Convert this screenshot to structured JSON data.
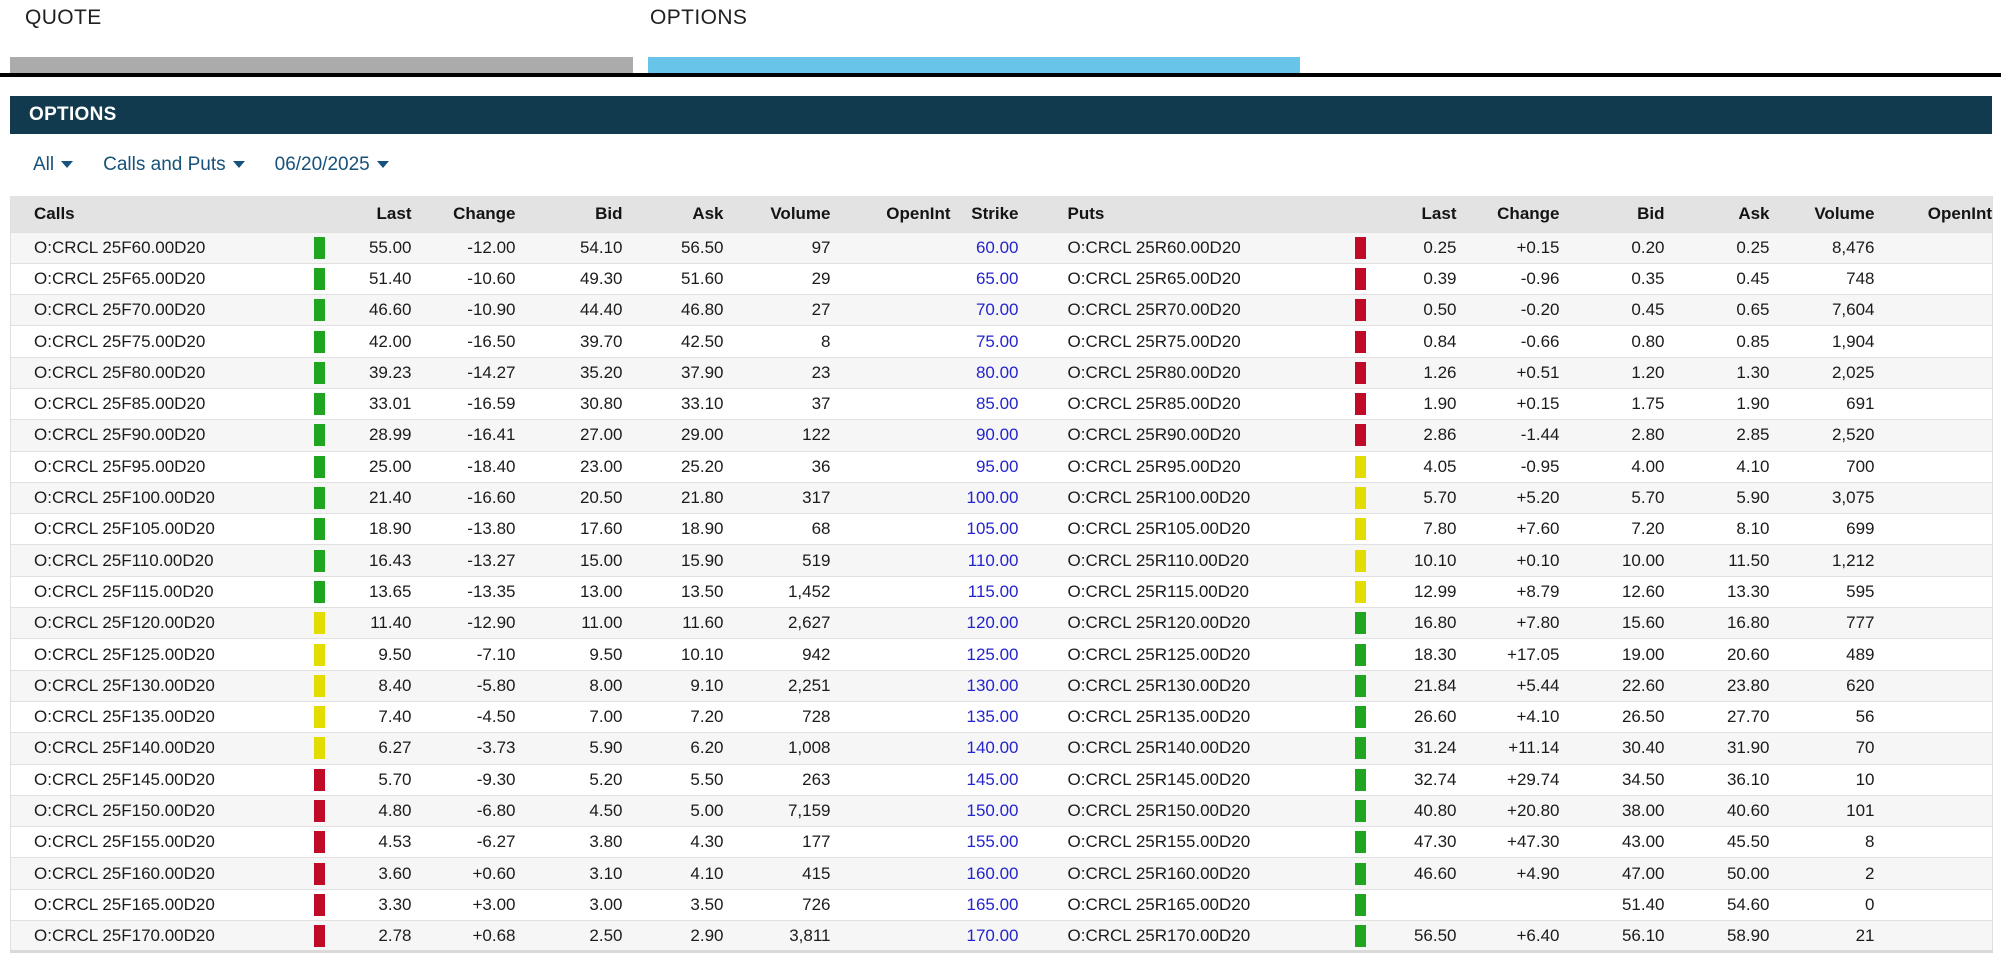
{
  "tabs": [
    {
      "label": "QUOTE",
      "active": false
    },
    {
      "label": "OPTIONS",
      "active": true
    }
  ],
  "panel": {
    "title": "OPTIONS"
  },
  "filters": {
    "range": "All",
    "type": "Calls and Puts",
    "expiration": "06/20/2025"
  },
  "table": {
    "call_headers": {
      "symbol": "Calls",
      "last": "Last",
      "change": "Change",
      "bid": "Bid",
      "ask": "Ask",
      "volume": "Volume",
      "openint": "OpenInt"
    },
    "strike_header": "Strike",
    "put_headers": {
      "symbol": "Puts",
      "last": "Last",
      "change": "Change",
      "bid": "Bid",
      "ask": "Ask",
      "volume": "Volume",
      "openint": "OpenInt"
    },
    "rows": [
      {
        "strike": "60.00",
        "call": {
          "symbol": "O:CRCL 25F60.00D20",
          "signal": "green",
          "last": "55.00",
          "change": "-12.00",
          "bid": "54.10",
          "ask": "56.50",
          "volume": "97",
          "openint": ""
        },
        "put": {
          "symbol": "O:CRCL 25R60.00D20",
          "signal": "red",
          "last": "0.25",
          "change": "+0.15",
          "bid": "0.20",
          "ask": "0.25",
          "volume": "8,476",
          "openint": ""
        }
      },
      {
        "strike": "65.00",
        "call": {
          "symbol": "O:CRCL 25F65.00D20",
          "signal": "green",
          "last": "51.40",
          "change": "-10.60",
          "bid": "49.30",
          "ask": "51.60",
          "volume": "29",
          "openint": ""
        },
        "put": {
          "symbol": "O:CRCL 25R65.00D20",
          "signal": "red",
          "last": "0.39",
          "change": "-0.96",
          "bid": "0.35",
          "ask": "0.45",
          "volume": "748",
          "openint": ""
        }
      },
      {
        "strike": "70.00",
        "call": {
          "symbol": "O:CRCL 25F70.00D20",
          "signal": "green",
          "last": "46.60",
          "change": "-10.90",
          "bid": "44.40",
          "ask": "46.80",
          "volume": "27",
          "openint": ""
        },
        "put": {
          "symbol": "O:CRCL 25R70.00D20",
          "signal": "red",
          "last": "0.50",
          "change": "-0.20",
          "bid": "0.45",
          "ask": "0.65",
          "volume": "7,604",
          "openint": ""
        }
      },
      {
        "strike": "75.00",
        "call": {
          "symbol": "O:CRCL 25F75.00D20",
          "signal": "green",
          "last": "42.00",
          "change": "-16.50",
          "bid": "39.70",
          "ask": "42.50",
          "volume": "8",
          "openint": ""
        },
        "put": {
          "symbol": "O:CRCL 25R75.00D20",
          "signal": "red",
          "last": "0.84",
          "change": "-0.66",
          "bid": "0.80",
          "ask": "0.85",
          "volume": "1,904",
          "openint": ""
        }
      },
      {
        "strike": "80.00",
        "call": {
          "symbol": "O:CRCL 25F80.00D20",
          "signal": "green",
          "last": "39.23",
          "change": "-14.27",
          "bid": "35.20",
          "ask": "37.90",
          "volume": "23",
          "openint": ""
        },
        "put": {
          "symbol": "O:CRCL 25R80.00D20",
          "signal": "red",
          "last": "1.26",
          "change": "+0.51",
          "bid": "1.20",
          "ask": "1.30",
          "volume": "2,025",
          "openint": ""
        }
      },
      {
        "strike": "85.00",
        "call": {
          "symbol": "O:CRCL 25F85.00D20",
          "signal": "green",
          "last": "33.01",
          "change": "-16.59",
          "bid": "30.80",
          "ask": "33.10",
          "volume": "37",
          "openint": ""
        },
        "put": {
          "symbol": "O:CRCL 25R85.00D20",
          "signal": "red",
          "last": "1.90",
          "change": "+0.15",
          "bid": "1.75",
          "ask": "1.90",
          "volume": "691",
          "openint": ""
        }
      },
      {
        "strike": "90.00",
        "call": {
          "symbol": "O:CRCL 25F90.00D20",
          "signal": "green",
          "last": "28.99",
          "change": "-16.41",
          "bid": "27.00",
          "ask": "29.00",
          "volume": "122",
          "openint": ""
        },
        "put": {
          "symbol": "O:CRCL 25R90.00D20",
          "signal": "red",
          "last": "2.86",
          "change": "-1.44",
          "bid": "2.80",
          "ask": "2.85",
          "volume": "2,520",
          "openint": ""
        }
      },
      {
        "strike": "95.00",
        "call": {
          "symbol": "O:CRCL 25F95.00D20",
          "signal": "green",
          "last": "25.00",
          "change": "-18.40",
          "bid": "23.00",
          "ask": "25.20",
          "volume": "36",
          "openint": ""
        },
        "put": {
          "symbol": "O:CRCL 25R95.00D20",
          "signal": "yellow",
          "last": "4.05",
          "change": "-0.95",
          "bid": "4.00",
          "ask": "4.10",
          "volume": "700",
          "openint": ""
        }
      },
      {
        "strike": "100.00",
        "call": {
          "symbol": "O:CRCL 25F100.00D20",
          "signal": "green",
          "last": "21.40",
          "change": "-16.60",
          "bid": "20.50",
          "ask": "21.80",
          "volume": "317",
          "openint": ""
        },
        "put": {
          "symbol": "O:CRCL 25R100.00D20",
          "signal": "yellow",
          "last": "5.70",
          "change": "+5.20",
          "bid": "5.70",
          "ask": "5.90",
          "volume": "3,075",
          "openint": ""
        }
      },
      {
        "strike": "105.00",
        "call": {
          "symbol": "O:CRCL 25F105.00D20",
          "signal": "green",
          "last": "18.90",
          "change": "-13.80",
          "bid": "17.60",
          "ask": "18.90",
          "volume": "68",
          "openint": ""
        },
        "put": {
          "symbol": "O:CRCL 25R105.00D20",
          "signal": "yellow",
          "last": "7.80",
          "change": "+7.60",
          "bid": "7.20",
          "ask": "8.10",
          "volume": "699",
          "openint": ""
        }
      },
      {
        "strike": "110.00",
        "call": {
          "symbol": "O:CRCL 25F110.00D20",
          "signal": "green",
          "last": "16.43",
          "change": "-13.27",
          "bid": "15.00",
          "ask": "15.90",
          "volume": "519",
          "openint": ""
        },
        "put": {
          "symbol": "O:CRCL 25R110.00D20",
          "signal": "yellow",
          "last": "10.10",
          "change": "+0.10",
          "bid": "10.00",
          "ask": "11.50",
          "volume": "1,212",
          "openint": ""
        }
      },
      {
        "strike": "115.00",
        "call": {
          "symbol": "O:CRCL 25F115.00D20",
          "signal": "green",
          "last": "13.65",
          "change": "-13.35",
          "bid": "13.00",
          "ask": "13.50",
          "volume": "1,452",
          "openint": ""
        },
        "put": {
          "symbol": "O:CRCL 25R115.00D20",
          "signal": "yellow",
          "last": "12.99",
          "change": "+8.79",
          "bid": "12.60",
          "ask": "13.30",
          "volume": "595",
          "openint": ""
        }
      },
      {
        "strike": "120.00",
        "call": {
          "symbol": "O:CRCL 25F120.00D20",
          "signal": "yellow",
          "last": "11.40",
          "change": "-12.90",
          "bid": "11.00",
          "ask": "11.60",
          "volume": "2,627",
          "openint": ""
        },
        "put": {
          "symbol": "O:CRCL 25R120.00D20",
          "signal": "green",
          "last": "16.80",
          "change": "+7.80",
          "bid": "15.60",
          "ask": "16.80",
          "volume": "777",
          "openint": ""
        }
      },
      {
        "strike": "125.00",
        "call": {
          "symbol": "O:CRCL 25F125.00D20",
          "signal": "yellow",
          "last": "9.50",
          "change": "-7.10",
          "bid": "9.50",
          "ask": "10.10",
          "volume": "942",
          "openint": ""
        },
        "put": {
          "symbol": "O:CRCL 25R125.00D20",
          "signal": "green",
          "last": "18.30",
          "change": "+17.05",
          "bid": "19.00",
          "ask": "20.60",
          "volume": "489",
          "openint": ""
        }
      },
      {
        "strike": "130.00",
        "call": {
          "symbol": "O:CRCL 25F130.00D20",
          "signal": "yellow",
          "last": "8.40",
          "change": "-5.80",
          "bid": "8.00",
          "ask": "9.10",
          "volume": "2,251",
          "openint": ""
        },
        "put": {
          "symbol": "O:CRCL 25R130.00D20",
          "signal": "green",
          "last": "21.84",
          "change": "+5.44",
          "bid": "22.60",
          "ask": "23.80",
          "volume": "620",
          "openint": ""
        }
      },
      {
        "strike": "135.00",
        "call": {
          "symbol": "O:CRCL 25F135.00D20",
          "signal": "yellow",
          "last": "7.40",
          "change": "-4.50",
          "bid": "7.00",
          "ask": "7.20",
          "volume": "728",
          "openint": ""
        },
        "put": {
          "symbol": "O:CRCL 25R135.00D20",
          "signal": "green",
          "last": "26.60",
          "change": "+4.10",
          "bid": "26.50",
          "ask": "27.70",
          "volume": "56",
          "openint": ""
        }
      },
      {
        "strike": "140.00",
        "call": {
          "symbol": "O:CRCL 25F140.00D20",
          "signal": "yellow",
          "last": "6.27",
          "change": "-3.73",
          "bid": "5.90",
          "ask": "6.20",
          "volume": "1,008",
          "openint": ""
        },
        "put": {
          "symbol": "O:CRCL 25R140.00D20",
          "signal": "green",
          "last": "31.24",
          "change": "+11.14",
          "bid": "30.40",
          "ask": "31.90",
          "volume": "70",
          "openint": ""
        }
      },
      {
        "strike": "145.00",
        "call": {
          "symbol": "O:CRCL 25F145.00D20",
          "signal": "red",
          "last": "5.70",
          "change": "-9.30",
          "bid": "5.20",
          "ask": "5.50",
          "volume": "263",
          "openint": ""
        },
        "put": {
          "symbol": "O:CRCL 25R145.00D20",
          "signal": "green",
          "last": "32.74",
          "change": "+29.74",
          "bid": "34.50",
          "ask": "36.10",
          "volume": "10",
          "openint": ""
        }
      },
      {
        "strike": "150.00",
        "call": {
          "symbol": "O:CRCL 25F150.00D20",
          "signal": "red",
          "last": "4.80",
          "change": "-6.80",
          "bid": "4.50",
          "ask": "5.00",
          "volume": "7,159",
          "openint": ""
        },
        "put": {
          "symbol": "O:CRCL 25R150.00D20",
          "signal": "green",
          "last": "40.80",
          "change": "+20.80",
          "bid": "38.00",
          "ask": "40.60",
          "volume": "101",
          "openint": ""
        }
      },
      {
        "strike": "155.00",
        "call": {
          "symbol": "O:CRCL 25F155.00D20",
          "signal": "red",
          "last": "4.53",
          "change": "-6.27",
          "bid": "3.80",
          "ask": "4.30",
          "volume": "177",
          "openint": ""
        },
        "put": {
          "symbol": "O:CRCL 25R155.00D20",
          "signal": "green",
          "last": "47.30",
          "change": "+47.30",
          "bid": "43.00",
          "ask": "45.50",
          "volume": "8",
          "openint": ""
        }
      },
      {
        "strike": "160.00",
        "call": {
          "symbol": "O:CRCL 25F160.00D20",
          "signal": "red",
          "last": "3.60",
          "change": "+0.60",
          "bid": "3.10",
          "ask": "4.10",
          "volume": "415",
          "openint": ""
        },
        "put": {
          "symbol": "O:CRCL 25R160.00D20",
          "signal": "green",
          "last": "46.60",
          "change": "+4.90",
          "bid": "47.00",
          "ask": "50.00",
          "volume": "2",
          "openint": ""
        }
      },
      {
        "strike": "165.00",
        "call": {
          "symbol": "O:CRCL 25F165.00D20",
          "signal": "red",
          "last": "3.30",
          "change": "+3.00",
          "bid": "3.00",
          "ask": "3.50",
          "volume": "726",
          "openint": ""
        },
        "put": {
          "symbol": "O:CRCL 25R165.00D20",
          "signal": "green",
          "last": "",
          "change": "",
          "bid": "51.40",
          "ask": "54.60",
          "volume": "0",
          "openint": ""
        }
      },
      {
        "strike": "170.00",
        "call": {
          "symbol": "O:CRCL 25F170.00D20",
          "signal": "red",
          "last": "2.78",
          "change": "+0.68",
          "bid": "2.50",
          "ask": "2.90",
          "volume": "3,811",
          "openint": ""
        },
        "put": {
          "symbol": "O:CRCL 25R170.00D20",
          "signal": "green",
          "last": "56.50",
          "change": "+6.40",
          "bid": "56.10",
          "ask": "58.90",
          "volume": "21",
          "openint": ""
        }
      }
    ]
  },
  "colors": {
    "signal_green": "#1fa51f",
    "signal_yellow": "#e4db00",
    "signal_red": "#bf0a28",
    "tab_active_bar": "#68c4e9",
    "tab_inactive_bar": "#ababab",
    "panel_header_bg": "#123a4f",
    "filter_text": "#16527b",
    "strike_link": "#2424cd"
  }
}
